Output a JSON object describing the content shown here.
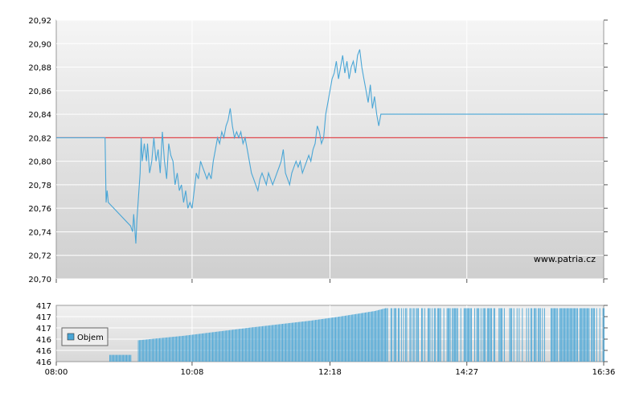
{
  "chart_data": [
    {
      "type": "line",
      "title": "",
      "xlabel": "",
      "ylabel": "",
      "ylim": [
        20.7,
        20.92
      ],
      "y_ticks": [
        "20,92",
        "20,90",
        "20,88",
        "20,86",
        "20,84",
        "20,82",
        "20,80",
        "20,78",
        "20,76",
        "20,74",
        "20,72",
        "20,70"
      ],
      "y_tick_values": [
        20.92,
        20.9,
        20.88,
        20.86,
        20.84,
        20.82,
        20.8,
        20.78,
        20.76,
        20.74,
        20.72,
        20.7
      ],
      "x_range": [
        "08:00",
        "16:36"
      ],
      "grid": true,
      "watermark": "www.patria.cz",
      "series": [
        {
          "role": "price",
          "color": "#4aa6d6",
          "points": [
            [
              "08:00",
              20.82
            ],
            [
              "08:25",
              20.82
            ],
            [
              "08:46",
              20.82
            ],
            [
              "08:47",
              20.765
            ],
            [
              "08:48",
              20.775
            ],
            [
              "08:49",
              20.765
            ],
            [
              "09:10",
              20.745
            ],
            [
              "09:12",
              20.74
            ],
            [
              "09:13",
              20.755
            ],
            [
              "09:15",
              20.73
            ],
            [
              "09:16",
              20.75
            ],
            [
              "09:19",
              20.79
            ],
            [
              "09:20",
              20.82
            ],
            [
              "09:21",
              20.8
            ],
            [
              "09:23",
              20.815
            ],
            [
              "09:25",
              20.8
            ],
            [
              "09:26",
              20.815
            ],
            [
              "09:28",
              20.79
            ],
            [
              "09:30",
              20.8
            ],
            [
              "09:32",
              20.82
            ],
            [
              "09:34",
              20.8
            ],
            [
              "09:36",
              20.81
            ],
            [
              "09:38",
              20.79
            ],
            [
              "09:40",
              20.825
            ],
            [
              "09:42",
              20.8
            ],
            [
              "09:44",
              20.785
            ],
            [
              "09:46",
              20.815
            ],
            [
              "09:48",
              20.805
            ],
            [
              "09:50",
              20.8
            ],
            [
              "09:52",
              20.78
            ],
            [
              "09:54",
              20.79
            ],
            [
              "09:56",
              20.775
            ],
            [
              "09:58",
              20.78
            ],
            [
              "10:00",
              20.765
            ],
            [
              "10:02",
              20.775
            ],
            [
              "10:04",
              20.76
            ],
            [
              "10:06",
              20.765
            ],
            [
              "10:08",
              20.76
            ],
            [
              "10:10",
              20.775
            ],
            [
              "10:12",
              20.79
            ],
            [
              "10:14",
              20.785
            ],
            [
              "10:16",
              20.8
            ],
            [
              "10:18",
              20.795
            ],
            [
              "10:20",
              20.79
            ],
            [
              "10:22",
              20.785
            ],
            [
              "10:24",
              20.79
            ],
            [
              "10:26",
              20.785
            ],
            [
              "10:28",
              20.8
            ],
            [
              "10:30",
              20.81
            ],
            [
              "10:32",
              20.82
            ],
            [
              "10:34",
              20.815
            ],
            [
              "10:36",
              20.825
            ],
            [
              "10:38",
              20.82
            ],
            [
              "10:40",
              20.83
            ],
            [
              "10:42",
              20.835
            ],
            [
              "10:44",
              20.845
            ],
            [
              "10:46",
              20.83
            ],
            [
              "10:48",
              20.82
            ],
            [
              "10:50",
              20.825
            ],
            [
              "10:52",
              20.82
            ],
            [
              "10:54",
              20.825
            ],
            [
              "10:56",
              20.815
            ],
            [
              "10:58",
              20.82
            ],
            [
              "11:00",
              20.81
            ],
            [
              "11:02",
              20.8
            ],
            [
              "11:04",
              20.79
            ],
            [
              "11:06",
              20.785
            ],
            [
              "11:08",
              20.78
            ],
            [
              "11:10",
              20.775
            ],
            [
              "11:12",
              20.785
            ],
            [
              "11:14",
              20.79
            ],
            [
              "11:16",
              20.785
            ],
            [
              "11:18",
              20.78
            ],
            [
              "11:20",
              20.79
            ],
            [
              "11:22",
              20.785
            ],
            [
              "11:24",
              20.78
            ],
            [
              "11:26",
              20.785
            ],
            [
              "11:28",
              20.79
            ],
            [
              "11:30",
              20.795
            ],
            [
              "11:32",
              20.8
            ],
            [
              "11:34",
              20.81
            ],
            [
              "11:36",
              20.79
            ],
            [
              "11:38",
              20.785
            ],
            [
              "11:40",
              20.78
            ],
            [
              "11:42",
              20.79
            ],
            [
              "11:44",
              20.795
            ],
            [
              "11:46",
              20.8
            ],
            [
              "11:48",
              20.795
            ],
            [
              "11:50",
              20.8
            ],
            [
              "11:52",
              20.79
            ],
            [
              "11:54",
              20.795
            ],
            [
              "11:56",
              20.8
            ],
            [
              "11:58",
              20.805
            ],
            [
              "12:00",
              20.8
            ],
            [
              "12:02",
              20.81
            ],
            [
              "12:04",
              20.815
            ],
            [
              "12:06",
              20.83
            ],
            [
              "12:08",
              20.825
            ],
            [
              "12:10",
              20.815
            ],
            [
              "12:12",
              20.82
            ],
            [
              "12:14",
              20.84
            ],
            [
              "12:16",
              20.85
            ],
            [
              "12:18",
              20.86
            ],
            [
              "12:20",
              20.87
            ],
            [
              "12:22",
              20.875
            ],
            [
              "12:24",
              20.885
            ],
            [
              "12:26",
              20.87
            ],
            [
              "12:28",
              20.88
            ],
            [
              "12:30",
              20.89
            ],
            [
              "12:32",
              20.875
            ],
            [
              "12:34",
              20.885
            ],
            [
              "12:36",
              20.87
            ],
            [
              "12:38",
              20.88
            ],
            [
              "12:40",
              20.885
            ],
            [
              "12:42",
              20.875
            ],
            [
              "12:44",
              20.89
            ],
            [
              "12:46",
              20.895
            ],
            [
              "12:48",
              20.88
            ],
            [
              "12:50",
              20.87
            ],
            [
              "12:52",
              20.86
            ],
            [
              "12:54",
              20.85
            ],
            [
              "12:56",
              20.865
            ],
            [
              "12:58",
              20.845
            ],
            [
              "13:00",
              20.855
            ],
            [
              "13:02",
              20.84
            ],
            [
              "13:04",
              20.83
            ],
            [
              "13:06",
              20.84
            ],
            [
              "13:08",
              20.84
            ],
            [
              "13:12",
              20.84
            ],
            [
              "16:36",
              20.84
            ]
          ]
        },
        {
          "role": "reference",
          "color": "#e0474c",
          "points": [
            [
              "08:00",
              20.82
            ],
            [
              "16:36",
              20.82
            ]
          ]
        }
      ]
    },
    {
      "type": "bar",
      "title": "",
      "xlabel": "",
      "ylabel": "",
      "y_ticks": [
        "417",
        "417",
        "417",
        "416",
        "416",
        "416"
      ],
      "x_ticks": [
        "08:00",
        "10:08",
        "12:18",
        "14:27",
        "16:36"
      ],
      "legend": {
        "label": "Objem",
        "position": "top-left"
      },
      "color": "#4aa6d6",
      "volume_profile": [
        [
          "08:00",
          0.0
        ],
        [
          "08:49",
          0.0
        ],
        [
          "08:50",
          0.12
        ],
        [
          "09:10",
          0.12
        ],
        [
          "09:11",
          0.0
        ],
        [
          "09:16",
          0.0
        ],
        [
          "09:17",
          0.38
        ],
        [
          "10:00",
          0.46
        ],
        [
          "11:00",
          0.6
        ],
        [
          "12:00",
          0.73
        ],
        [
          "12:30",
          0.81
        ],
        [
          "12:40",
          0.84
        ],
        [
          "13:00",
          0.9
        ],
        [
          "13:10",
          0.95
        ],
        [
          "16:36",
          0.95
        ]
      ]
    }
  ]
}
